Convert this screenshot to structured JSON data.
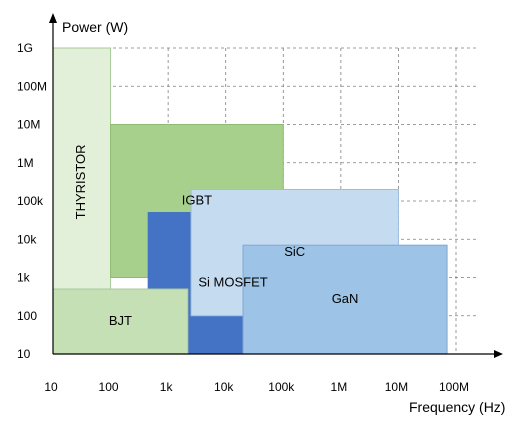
{
  "chart_data": {
    "type": "area",
    "xlabel": "Frequency (Hz)",
    "ylabel": "Power (W)",
    "x_scale": "log",
    "y_scale": "log",
    "xlim": [
      10,
      100000000
    ],
    "ylim": [
      10,
      1000000000
    ],
    "x_ticks": [
      "10",
      "100",
      "1k",
      "10k",
      "100k",
      "1M",
      "10M",
      "100M"
    ],
    "y_ticks": [
      "10",
      "100",
      "1k",
      "10k",
      "100k",
      "1M",
      "10M",
      "100M",
      "1G"
    ],
    "grid": true,
    "regions": [
      {
        "name": "THYRISTOR",
        "x": [
          10,
          100
        ],
        "y": [
          100,
          1000000000
        ],
        "color": "#e2efd9",
        "stroke": "#a9c99a",
        "label_rotated": true
      },
      {
        "name": "IGBT",
        "x": [
          100,
          100000
        ],
        "y": [
          1000,
          10000000
        ],
        "color": "#a8d08d",
        "stroke": "#8fbc72"
      },
      {
        "name": "Si MOSFET",
        "x": [
          450,
          400000
        ],
        "y": [
          10,
          50000
        ],
        "color": "#4472c4",
        "stroke": "#4472c4"
      },
      {
        "name": "SiC",
        "x": [
          2500,
          10000000
        ],
        "y": [
          100,
          200000
        ],
        "color": "#c5dbf0",
        "stroke": "#9dbde0"
      },
      {
        "name": "GaN",
        "x": [
          20000,
          70000000
        ],
        "y": [
          10,
          7000
        ],
        "color": "#9dc3e6",
        "stroke": "#7fa9d6"
      },
      {
        "name": "BJT",
        "x": [
          10,
          2200
        ],
        "y": [
          10,
          500
        ],
        "color": "#c5e0b4",
        "stroke": "#a9c99a"
      }
    ]
  }
}
